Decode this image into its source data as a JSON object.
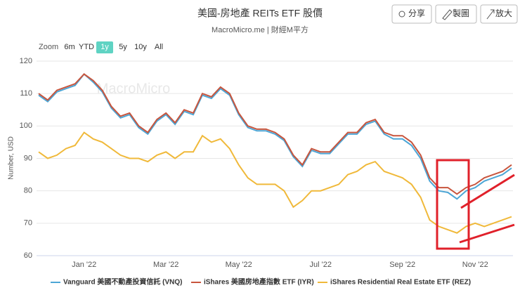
{
  "chart_data": {
    "type": "line",
    "title": "美國-房地產 REITs ETF 股價",
    "subtitle": "MacroMicro.me | 財經M平方",
    "watermark": "MacroMicro",
    "buttons": [
      "分享",
      "製圖",
      "放大"
    ],
    "range_label": "Zoom",
    "range_options": [
      "6m",
      "YTD",
      "1y",
      "5y",
      "10y",
      "All"
    ],
    "range_active": 2,
    "y_label": "Number, USD",
    "ylim": [
      60,
      120
    ],
    "yticks": [
      60,
      70,
      80,
      90,
      100,
      110,
      120
    ],
    "grid": true,
    "legend": "bottom",
    "categories": [
      null,
      null,
      null,
      null,
      null,
      "Jan '22",
      null,
      null,
      null,
      null,
      null,
      null,
      null,
      null,
      "Mar '22",
      null,
      null,
      null,
      null,
      null,
      null,
      null,
      "May '22",
      null,
      null,
      null,
      null,
      null,
      null,
      null,
      null,
      "Jul '22",
      null,
      null,
      null,
      null,
      null,
      null,
      null,
      null,
      "Sep '22",
      null,
      null,
      null,
      null,
      null,
      null,
      null,
      "Nov '22",
      null,
      null,
      null,
      null
    ],
    "series": [
      {
        "name": "Vanguard 美國不動產投資信託 (VNQ)",
        "color": "#4da6d6",
        "values": [
          109.5,
          107.5,
          110.5,
          111.5,
          112.5,
          116,
          113.5,
          110.5,
          105.5,
          102.5,
          103.5,
          99.5,
          97.5,
          101.5,
          103.5,
          100.5,
          104.5,
          103.5,
          109.5,
          108.5,
          111.5,
          109.5,
          103.5,
          99.5,
          98.5,
          98.5,
          97.5,
          95.5,
          90.5,
          87.5,
          92.5,
          91.5,
          91.5,
          94.5,
          97.5,
          97.5,
          100.5,
          101.5,
          97.5,
          96,
          96,
          94,
          90,
          83,
          80,
          79.5,
          77.5,
          80,
          81,
          83,
          84,
          85,
          87
        ]
      },
      {
        "name": "iShares 美國房地產指數 ETF (IYR)",
        "color": "#c8553d",
        "values": [
          110,
          108,
          111,
          112,
          113,
          116,
          114,
          111,
          106,
          103,
          104,
          100,
          98,
          102,
          104,
          101,
          105,
          104,
          110,
          109,
          112,
          110,
          104,
          100,
          99,
          99,
          98,
          96,
          91,
          88,
          93,
          92,
          92,
          95,
          98,
          98,
          101,
          102,
          98,
          97,
          97,
          95,
          91,
          84,
          81,
          81,
          79,
          81,
          82,
          84,
          85,
          86,
          88
        ]
      },
      {
        "name": "iShares Residential Real Estate ETF (REZ)",
        "color": "#f0b93a",
        "values": [
          92,
          90,
          91,
          93,
          94,
          98,
          96,
          95,
          93,
          91,
          90,
          90,
          89,
          91,
          92,
          90,
          92,
          92,
          97,
          95,
          96,
          93,
          88,
          84,
          82,
          82,
          82,
          80,
          75,
          77,
          80,
          80,
          81,
          82,
          85,
          86,
          88,
          89,
          86,
          85,
          84,
          82,
          78,
          71,
          69,
          68,
          67,
          69,
          70,
          69,
          70,
          71,
          72
        ]
      }
    ]
  }
}
